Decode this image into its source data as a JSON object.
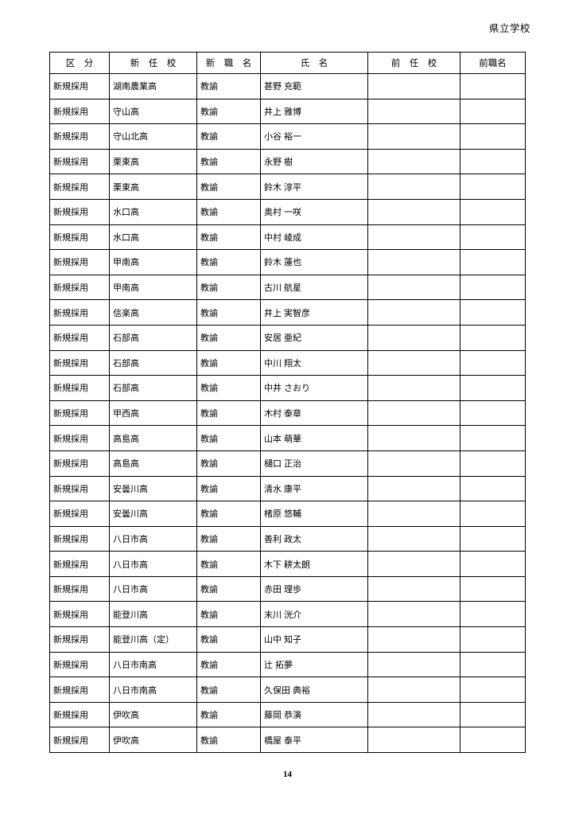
{
  "page": {
    "corner_label": "県立学校",
    "page_number": "14"
  },
  "table": {
    "headers": [
      "区　分",
      "新　任　校",
      "新　職　名",
      "氏　名",
      "前　任　校",
      "前職名"
    ],
    "column_keys": [
      "kubun",
      "new-school",
      "new-title",
      "name",
      "prev-school",
      "prev-title"
    ],
    "rows": [
      [
        "新規採用",
        "湖南農業高",
        "教諭",
        "甚野 充範",
        "",
        ""
      ],
      [
        "新規採用",
        "守山高",
        "教諭",
        "井上 雅博",
        "",
        ""
      ],
      [
        "新規採用",
        "守山北高",
        "教諭",
        "小谷 裕一",
        "",
        ""
      ],
      [
        "新規採用",
        "栗東高",
        "教諭",
        "永野 樹",
        "",
        ""
      ],
      [
        "新規採用",
        "栗東高",
        "教諭",
        "鈴木 淳平",
        "",
        ""
      ],
      [
        "新規採用",
        "水口高",
        "教諭",
        "奥村 一咲",
        "",
        ""
      ],
      [
        "新規採用",
        "水口高",
        "教諭",
        "中村 崚成",
        "",
        ""
      ],
      [
        "新規採用",
        "甲南高",
        "教諭",
        "鈴木 蓮也",
        "",
        ""
      ],
      [
        "新規採用",
        "甲南高",
        "教諭",
        "古川 航星",
        "",
        ""
      ],
      [
        "新規採用",
        "信楽高",
        "教諭",
        "井上 実智彦",
        "",
        ""
      ],
      [
        "新規採用",
        "石部高",
        "教諭",
        "安居 亜紀",
        "",
        ""
      ],
      [
        "新規採用",
        "石部高",
        "教諭",
        "中川 翔太",
        "",
        ""
      ],
      [
        "新規採用",
        "石部高",
        "教諭",
        "中井 さおり",
        "",
        ""
      ],
      [
        "新規採用",
        "甲西高",
        "教諭",
        "木村 泰章",
        "",
        ""
      ],
      [
        "新規採用",
        "高島高",
        "教諭",
        "山本 萌華",
        "",
        ""
      ],
      [
        "新規採用",
        "高島高",
        "教諭",
        "樋口 正治",
        "",
        ""
      ],
      [
        "新規採用",
        "安曇川高",
        "教諭",
        "清水 康平",
        "",
        ""
      ],
      [
        "新規採用",
        "安曇川高",
        "教諭",
        "楮原 悠輔",
        "",
        ""
      ],
      [
        "新規採用",
        "八日市高",
        "教諭",
        "善利 政太",
        "",
        ""
      ],
      [
        "新規採用",
        "八日市高",
        "教諭",
        "木下 耕太朗",
        "",
        ""
      ],
      [
        "新規採用",
        "八日市高",
        "教諭",
        "赤田 理歩",
        "",
        ""
      ],
      [
        "新規採用",
        "能登川高",
        "教諭",
        "末川 洸介",
        "",
        ""
      ],
      [
        "新規採用",
        "能登川高（定）",
        "教諭",
        "山中 知子",
        "",
        ""
      ],
      [
        "新規採用",
        "八日市南高",
        "教諭",
        "辻 拓夢",
        "",
        ""
      ],
      [
        "新規採用",
        "八日市南高",
        "教諭",
        "久保田 典裕",
        "",
        ""
      ],
      [
        "新規採用",
        "伊吹高",
        "教諭",
        "藤岡 恭演",
        "",
        ""
      ],
      [
        "新規採用",
        "伊吹高",
        "教諭",
        "橋屋 泰平",
        "",
        ""
      ]
    ]
  }
}
